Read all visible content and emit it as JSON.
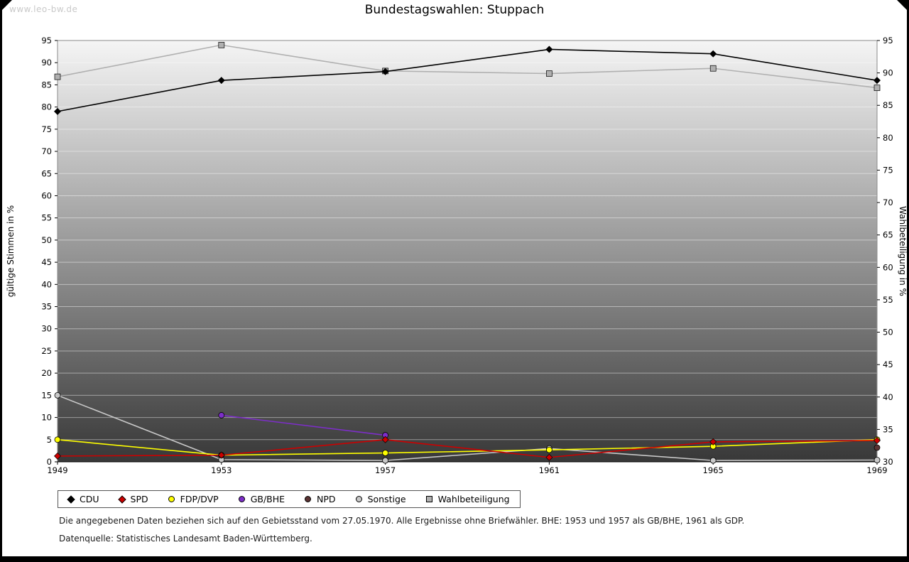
{
  "watermark": "www.leo-bw.de",
  "title": "Bundestagswahlen: Stuppach",
  "footnotes": {
    "line1": "Die angegebenen Daten beziehen sich auf den Gebietsstand vom 27.05.1970. Alle Ergebnisse ohne Briefwähler. BHE: 1953 und 1957 als GB/BHE, 1961 als GDP.",
    "line2": "Datenquelle: Statistisches Landesamt Baden-Württemberg."
  },
  "chart_data": {
    "type": "line",
    "title": "Bundestagswahlen: Stuppach",
    "categories": [
      "1949",
      "1953",
      "1957",
      "1961",
      "1965",
      "1969"
    ],
    "left_axis": {
      "label": "gültige Stimmen in %",
      "min": 0,
      "max": 95,
      "step": 5
    },
    "right_axis": {
      "label": "Wahlbeteiligung in %",
      "min": 30,
      "max": 95,
      "step": 5
    },
    "plot_background": {
      "top_color": "#f5f5f5",
      "bottom_color": "#383838"
    },
    "grid": "horizontal-white",
    "legend_position": "bottom",
    "series": [
      {
        "name": "CDU",
        "color": "#000000",
        "marker": "diamond",
        "axis": "left",
        "values": [
          79,
          86,
          88,
          93,
          92,
          86
        ]
      },
      {
        "name": "SPD",
        "color": "#cc0000",
        "marker": "diamond",
        "axis": "left",
        "values": [
          1.3,
          1.5,
          5,
          1,
          4.5,
          4.8
        ]
      },
      {
        "name": "FDP/DVP",
        "color": "#ffff00",
        "marker": "circle",
        "axis": "left",
        "values": [
          5,
          1.5,
          2,
          2.7,
          3.5,
          5
        ]
      },
      {
        "name": "GB/BHE",
        "color": "#7d2ec9",
        "marker": "circle",
        "axis": "left",
        "values": [
          null,
          10.5,
          6,
          null,
          null,
          null
        ]
      },
      {
        "name": "NPD",
        "color": "#5a3333",
        "marker": "circle",
        "axis": "left",
        "values": [
          null,
          null,
          null,
          null,
          null,
          3.2
        ]
      },
      {
        "name": "Sonstige",
        "color": "#c8c8c8",
        "marker": "circle",
        "axis": "left",
        "values": [
          15,
          0.5,
          0.3,
          3,
          0.3,
          0.4
        ]
      },
      {
        "name": "Wahlbeteiligung",
        "color": "#b0b0b0",
        "marker": "square",
        "axis": "right",
        "values": [
          89.4,
          94.3,
          90.3,
          89.9,
          90.7,
          87.7
        ]
      }
    ]
  }
}
